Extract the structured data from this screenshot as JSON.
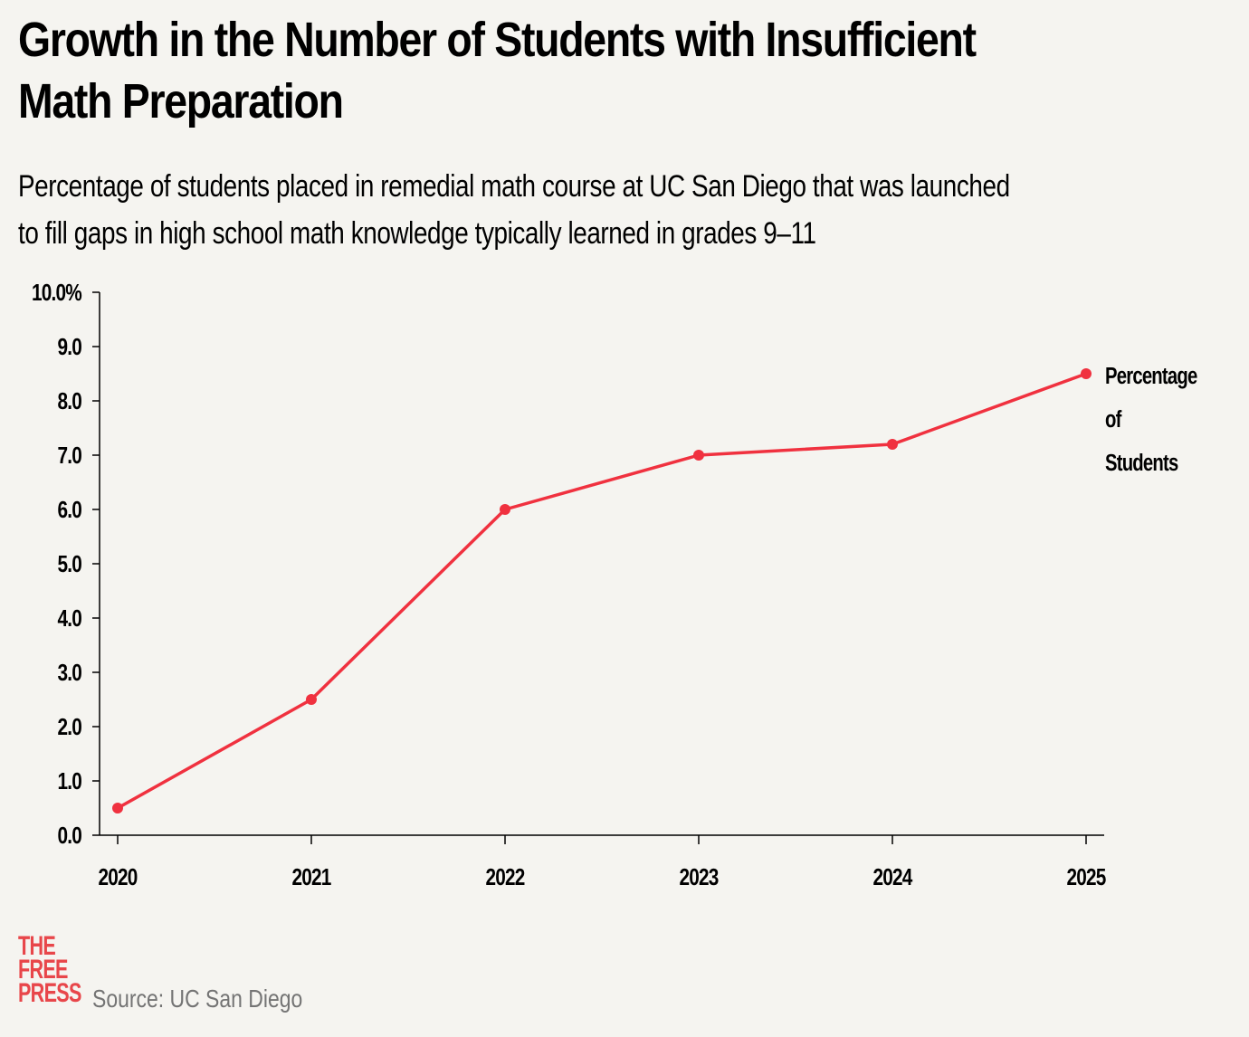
{
  "title_lines": [
    "Growth in the Number of Students with Insufficient",
    "Math Preparation"
  ],
  "subtitle_lines": [
    "Percentage of students placed in remedial math course at UC San Diego that was launched",
    "to fill gaps in high school math knowledge typically learned in grades 9–11"
  ],
  "chart_data": {
    "type": "line",
    "title": "Growth in the Number of Students with Insufficient Math Preparation",
    "xlabel": "",
    "ylabel": "",
    "categories": [
      "2020",
      "2021",
      "2022",
      "2023",
      "2024",
      "2025"
    ],
    "series": [
      {
        "name": "Percentage of Students",
        "values": [
          0.5,
          2.5,
          6.0,
          7.0,
          7.2,
          8.5
        ]
      }
    ],
    "series_label_lines": [
      "Percentage",
      "of",
      "Students"
    ],
    "ylim": [
      0,
      10
    ],
    "yticks": [
      "0.0",
      "1.0",
      "2.0",
      "3.0",
      "4.0",
      "5.0",
      "6.0",
      "7.0",
      "8.0",
      "9.0",
      "10.0%"
    ],
    "grid": false,
    "legend": "direct label at line end (right)",
    "color": "#f0313f"
  },
  "logo": [
    "THE",
    "FREE",
    "PRESS"
  ],
  "source": "Source: UC San Diego"
}
